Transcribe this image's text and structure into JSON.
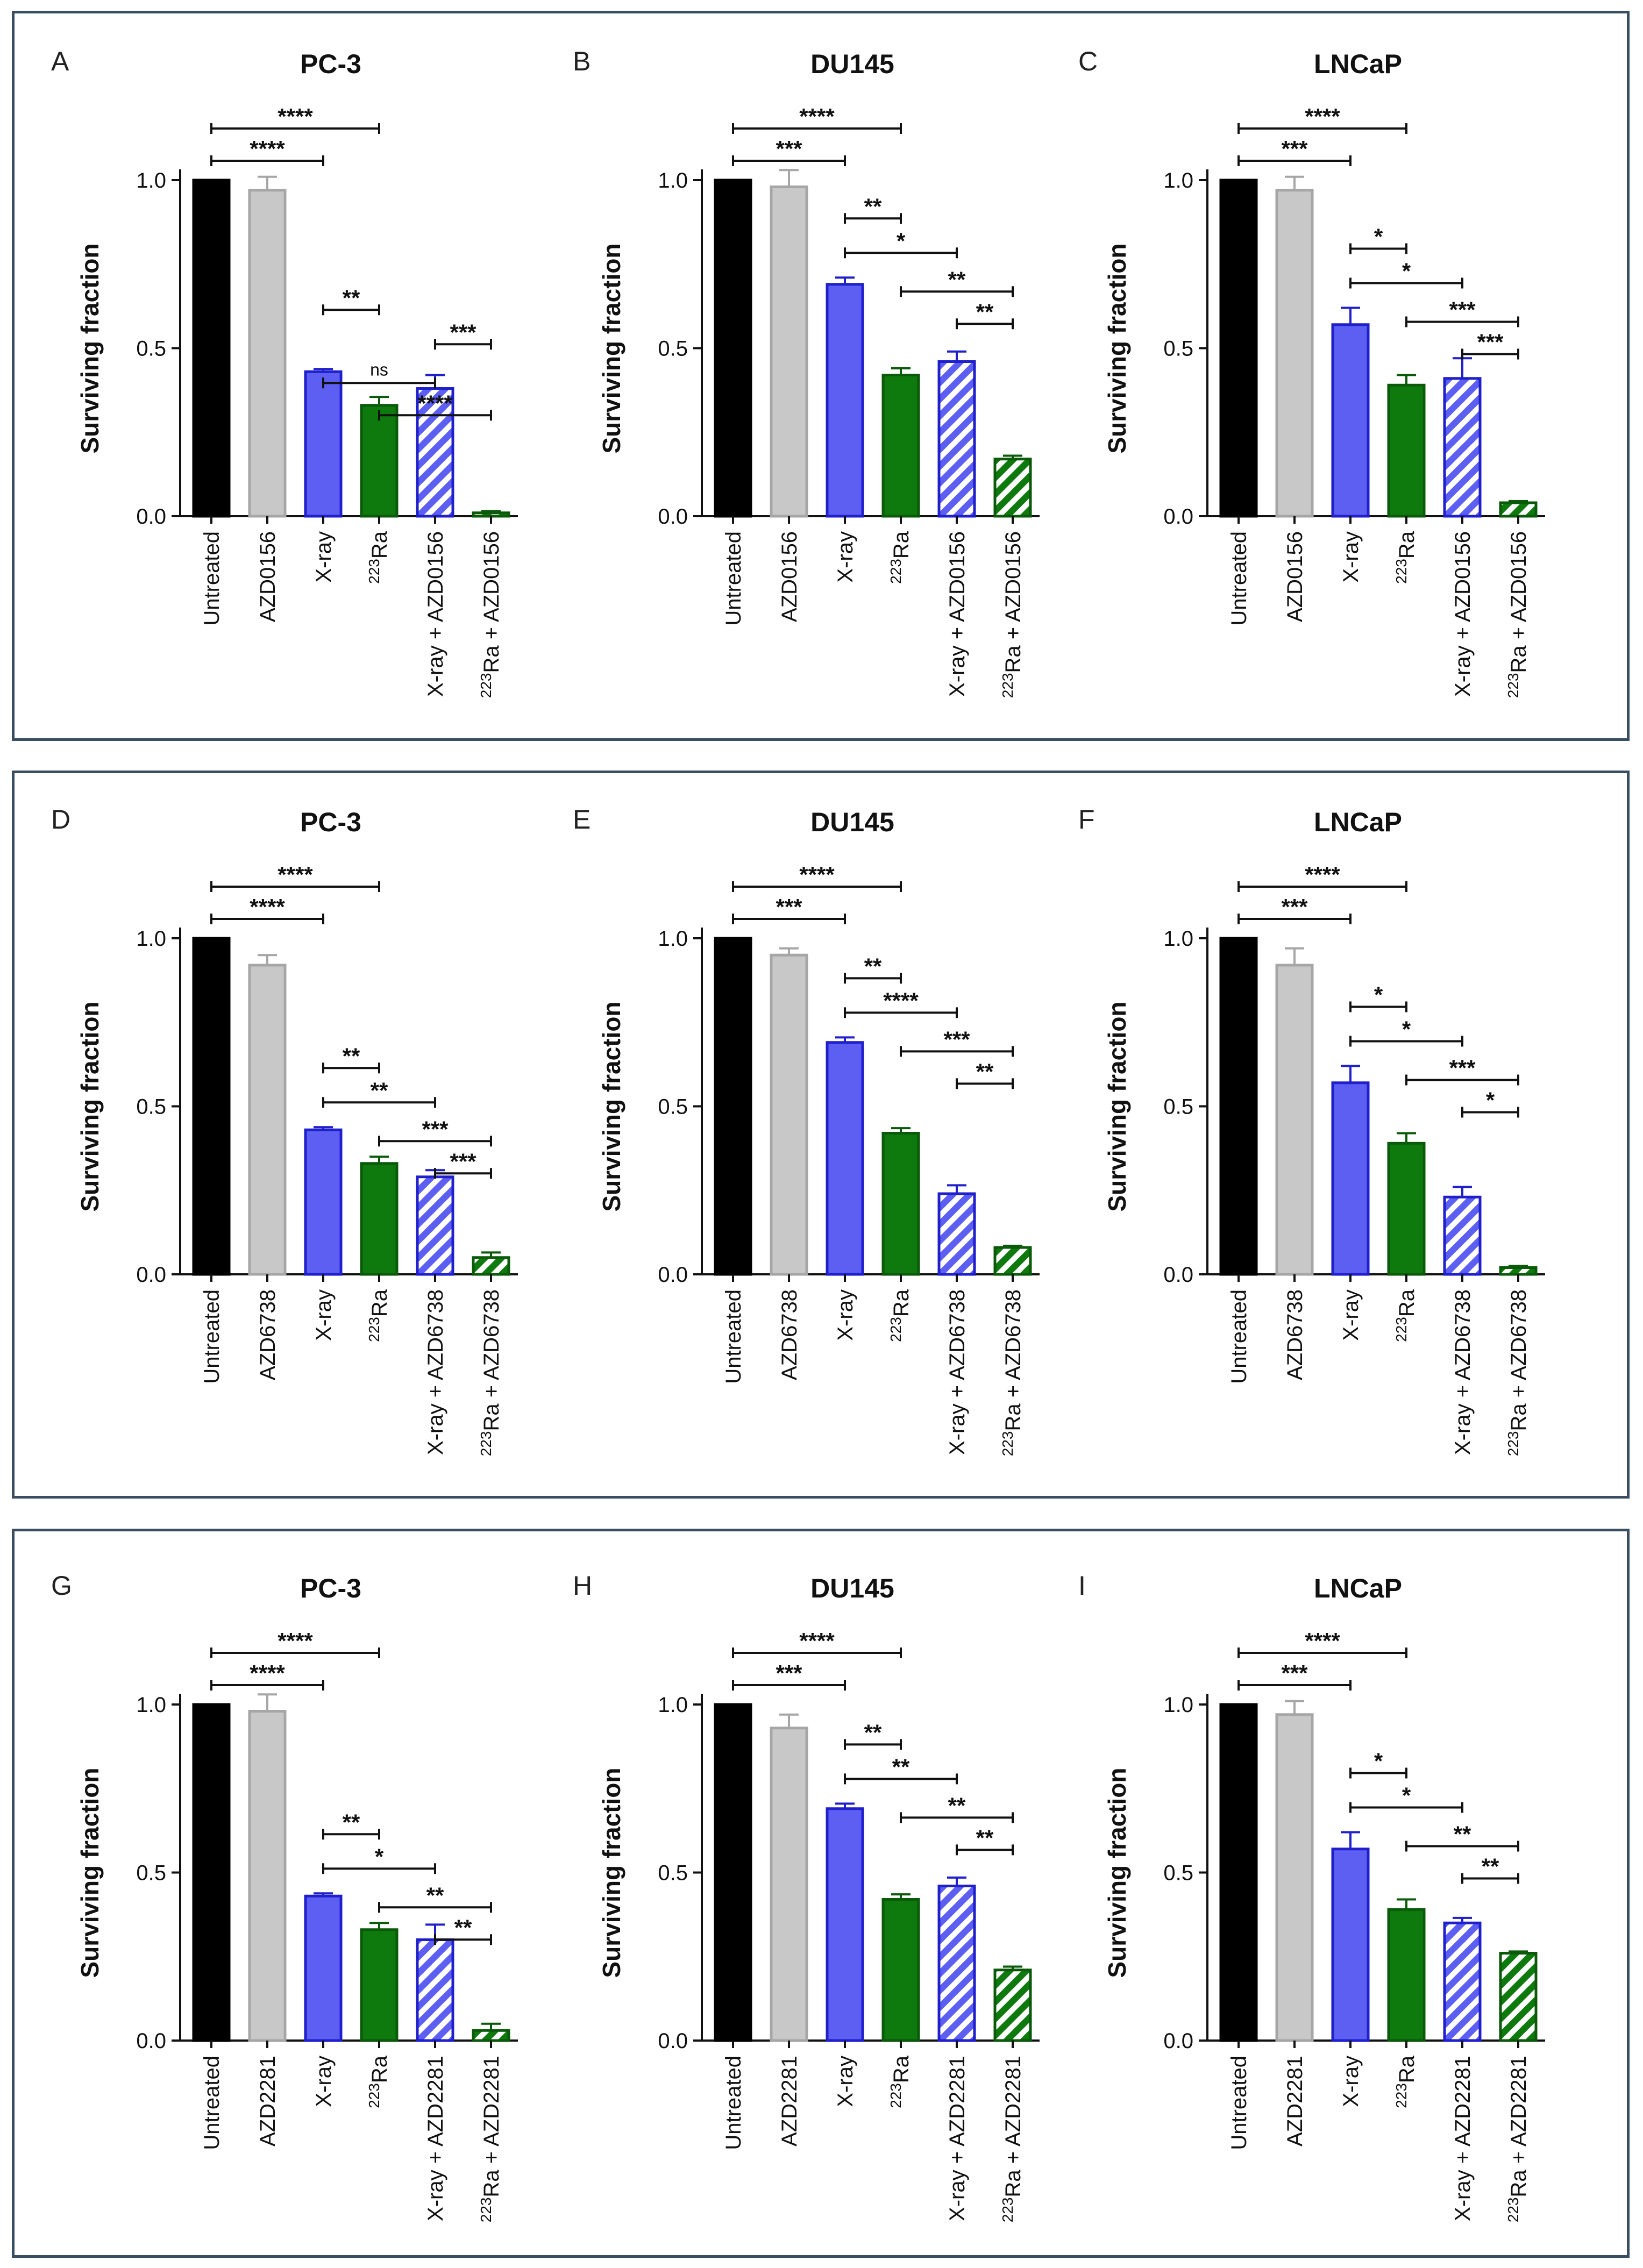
{
  "figure": {
    "rows": [
      {
        "id": "row-1",
        "panels": [
          "A",
          "B",
          "C"
        ]
      },
      {
        "id": "row-2",
        "panels": [
          "D",
          "E",
          "F"
        ]
      },
      {
        "id": "row-3",
        "panels": [
          "G",
          "H",
          "I"
        ]
      }
    ]
  },
  "colors": {
    "untreated": "#000000",
    "drug": "#c8c8c8",
    "drug_outline": "#a6a6a6",
    "xray": "#5c5ff2",
    "xray_outline": "#1f1fcc",
    "ra": "#0e7a0e",
    "ra_outline": "#0a5a0a",
    "frame": "#3a4e62"
  },
  "chart_data": [
    {
      "panel": "A",
      "title": "PC-3",
      "type": "bar",
      "ylabel": "Surviving fraction",
      "ylim": [
        0,
        1.0
      ],
      "yticks": [
        "0.0",
        "0.5",
        "1.0"
      ],
      "categories": [
        "Untreated",
        "AZD0156",
        "X-ray",
        "Ra",
        "X-ray + AZD0156",
        "Ra + AZD0156"
      ],
      "superscripts": [
        "",
        "",
        "",
        "223",
        "",
        "223"
      ],
      "values": [
        1.0,
        0.97,
        0.43,
        0.33,
        0.38,
        0.01
      ],
      "errors": [
        0,
        0.04,
        0.008,
        0.025,
        0.04,
        0.005
      ],
      "comparisons": [
        {
          "from": 0,
          "to": 3,
          "label": "****"
        },
        {
          "from": 0,
          "to": 2,
          "label": "****"
        },
        {
          "from": 2,
          "to": 3,
          "label": "**"
        },
        {
          "from": 4,
          "to": 5,
          "label": "***"
        },
        {
          "from": 2,
          "to": 4,
          "label": "ns"
        },
        {
          "from": 3,
          "to": 5,
          "label": "****"
        }
      ]
    },
    {
      "panel": "B",
      "title": "DU145",
      "type": "bar",
      "ylabel": "Surviving fraction",
      "ylim": [
        0,
        1.0
      ],
      "yticks": [
        "0.0",
        "0.5",
        "1.0"
      ],
      "categories": [
        "Untreated",
        "AZD0156",
        "X-ray",
        "Ra",
        "X-ray + AZD0156",
        "Ra + AZD0156"
      ],
      "superscripts": [
        "",
        "",
        "",
        "223",
        "",
        "223"
      ],
      "values": [
        1.0,
        0.98,
        0.69,
        0.42,
        0.46,
        0.17
      ],
      "errors": [
        0,
        0.05,
        0.02,
        0.02,
        0.03,
        0.01
      ],
      "comparisons": [
        {
          "from": 0,
          "to": 3,
          "label": "****"
        },
        {
          "from": 0,
          "to": 2,
          "label": "***"
        },
        {
          "from": 2,
          "to": 3,
          "label": "**"
        },
        {
          "from": 2,
          "to": 4,
          "label": "*"
        },
        {
          "from": 3,
          "to": 5,
          "label": "**"
        },
        {
          "from": 4,
          "to": 5,
          "label": "**"
        }
      ]
    },
    {
      "panel": "C",
      "title": "LNCaP",
      "type": "bar",
      "ylabel": "Surviving fraction",
      "ylim": [
        0,
        1.0
      ],
      "yticks": [
        "0.0",
        "0.5",
        "1.0"
      ],
      "categories": [
        "Untreated",
        "AZD0156",
        "X-ray",
        "Ra",
        "X-ray + AZD0156",
        "Ra + AZD0156"
      ],
      "superscripts": [
        "",
        "",
        "",
        "223",
        "",
        "223"
      ],
      "values": [
        1.0,
        0.97,
        0.57,
        0.39,
        0.41,
        0.04
      ],
      "errors": [
        0,
        0.04,
        0.05,
        0.03,
        0.06,
        0.005
      ],
      "comparisons": [
        {
          "from": 0,
          "to": 3,
          "label": "****"
        },
        {
          "from": 0,
          "to": 2,
          "label": "***"
        },
        {
          "from": 2,
          "to": 3,
          "label": "*"
        },
        {
          "from": 2,
          "to": 4,
          "label": "*"
        },
        {
          "from": 3,
          "to": 5,
          "label": "***"
        },
        {
          "from": 4,
          "to": 5,
          "label": "***"
        }
      ]
    },
    {
      "panel": "D",
      "title": "PC-3",
      "type": "bar",
      "ylabel": "Surviving fraction",
      "ylim": [
        0,
        1.0
      ],
      "yticks": [
        "0.0",
        "0.5",
        "1.0"
      ],
      "categories": [
        "Untreated",
        "AZD6738",
        "X-ray",
        "Ra",
        "X-ray + AZD6738",
        "Ra + AZD6738"
      ],
      "superscripts": [
        "",
        "",
        "",
        "223",
        "",
        "223"
      ],
      "values": [
        1.0,
        0.92,
        0.43,
        0.33,
        0.29,
        0.05
      ],
      "errors": [
        0,
        0.03,
        0.008,
        0.02,
        0.02,
        0.015
      ],
      "comparisons": [
        {
          "from": 0,
          "to": 3,
          "label": "****"
        },
        {
          "from": 0,
          "to": 2,
          "label": "****"
        },
        {
          "from": 2,
          "to": 3,
          "label": "**"
        },
        {
          "from": 2,
          "to": 4,
          "label": "**"
        },
        {
          "from": 3,
          "to": 5,
          "label": "***"
        },
        {
          "from": 4,
          "to": 5,
          "label": "***"
        }
      ]
    },
    {
      "panel": "E",
      "title": "DU145",
      "type": "bar",
      "ylabel": "Surviving fraction",
      "ylim": [
        0,
        1.0
      ],
      "yticks": [
        "0.0",
        "0.5",
        "1.0"
      ],
      "categories": [
        "Untreated",
        "AZD6738",
        "X-ray",
        "Ra",
        "X-ray + AZD6738",
        "Ra + AZD6738"
      ],
      "superscripts": [
        "",
        "",
        "",
        "223",
        "",
        "223"
      ],
      "values": [
        1.0,
        0.95,
        0.69,
        0.42,
        0.24,
        0.08
      ],
      "errors": [
        0,
        0.02,
        0.015,
        0.015,
        0.025,
        0.005
      ],
      "comparisons": [
        {
          "from": 0,
          "to": 3,
          "label": "****"
        },
        {
          "from": 0,
          "to": 2,
          "label": "***"
        },
        {
          "from": 2,
          "to": 3,
          "label": "**"
        },
        {
          "from": 2,
          "to": 4,
          "label": "****"
        },
        {
          "from": 3,
          "to": 5,
          "label": "***"
        },
        {
          "from": 4,
          "to": 5,
          "label": "**"
        }
      ]
    },
    {
      "panel": "F",
      "title": "LNCaP",
      "type": "bar",
      "ylabel": "Surviving fraction",
      "ylim": [
        0,
        1.0
      ],
      "yticks": [
        "0.0",
        "0.5",
        "1.0"
      ],
      "categories": [
        "Untreated",
        "AZD6738",
        "X-ray",
        "Ra",
        "X-ray + AZD6738",
        "Ra + AZD6738"
      ],
      "superscripts": [
        "",
        "",
        "",
        "223",
        "",
        "223"
      ],
      "values": [
        1.0,
        0.92,
        0.57,
        0.39,
        0.23,
        0.02
      ],
      "errors": [
        0,
        0.05,
        0.05,
        0.03,
        0.03,
        0.005
      ],
      "comparisons": [
        {
          "from": 0,
          "to": 3,
          "label": "****"
        },
        {
          "from": 0,
          "to": 2,
          "label": "***"
        },
        {
          "from": 2,
          "to": 3,
          "label": "*"
        },
        {
          "from": 2,
          "to": 4,
          "label": "*"
        },
        {
          "from": 3,
          "to": 5,
          "label": "***"
        },
        {
          "from": 4,
          "to": 5,
          "label": "*"
        }
      ]
    },
    {
      "panel": "G",
      "title": "PC-3",
      "type": "bar",
      "ylabel": "Surviving fraction",
      "ylim": [
        0,
        1.0
      ],
      "yticks": [
        "0.0",
        "0.5",
        "1.0"
      ],
      "categories": [
        "Untreated",
        "AZD2281",
        "X-ray",
        "Ra",
        "X-ray + AZD2281",
        "Ra + AZD2281"
      ],
      "superscripts": [
        "",
        "",
        "",
        "223",
        "",
        "223"
      ],
      "values": [
        1.0,
        0.98,
        0.43,
        0.33,
        0.3,
        0.03
      ],
      "errors": [
        0,
        0.05,
        0.008,
        0.02,
        0.045,
        0.02
      ],
      "comparisons": [
        {
          "from": 0,
          "to": 3,
          "label": "****"
        },
        {
          "from": 0,
          "to": 2,
          "label": "****"
        },
        {
          "from": 2,
          "to": 3,
          "label": "**"
        },
        {
          "from": 2,
          "to": 4,
          "label": "*"
        },
        {
          "from": 3,
          "to": 5,
          "label": "**"
        },
        {
          "from": 4,
          "to": 5,
          "label": "**"
        }
      ]
    },
    {
      "panel": "H",
      "title": "DU145",
      "type": "bar",
      "ylabel": "Surviving fraction",
      "ylim": [
        0,
        1.0
      ],
      "yticks": [
        "0.0",
        "0.5",
        "1.0"
      ],
      "categories": [
        "Untreated",
        "AZD2281",
        "X-ray",
        "Ra",
        "X-ray + AZD2281",
        "Ra + AZD2281"
      ],
      "superscripts": [
        "",
        "",
        "",
        "223",
        "",
        "223"
      ],
      "values": [
        1.0,
        0.93,
        0.69,
        0.42,
        0.46,
        0.21
      ],
      "errors": [
        0,
        0.04,
        0.015,
        0.015,
        0.025,
        0.01
      ],
      "comparisons": [
        {
          "from": 0,
          "to": 3,
          "label": "****"
        },
        {
          "from": 0,
          "to": 2,
          "label": "***"
        },
        {
          "from": 2,
          "to": 3,
          "label": "**"
        },
        {
          "from": 2,
          "to": 4,
          "label": "**"
        },
        {
          "from": 3,
          "to": 5,
          "label": "**"
        },
        {
          "from": 4,
          "to": 5,
          "label": "**"
        }
      ]
    },
    {
      "panel": "I",
      "title": "LNCaP",
      "type": "bar",
      "ylabel": "Surviving fraction",
      "ylim": [
        0,
        1.0
      ],
      "yticks": [
        "0.0",
        "0.5",
        "1.0"
      ],
      "categories": [
        "Untreated",
        "AZD2281",
        "X-ray",
        "Ra",
        "X-ray + AZD2281",
        "Ra + AZD2281"
      ],
      "superscripts": [
        "",
        "",
        "",
        "223",
        "",
        "223"
      ],
      "values": [
        1.0,
        0.97,
        0.57,
        0.39,
        0.35,
        0.26
      ],
      "errors": [
        0,
        0.04,
        0.05,
        0.03,
        0.015,
        0.005
      ],
      "comparisons": [
        {
          "from": 0,
          "to": 3,
          "label": "****"
        },
        {
          "from": 0,
          "to": 2,
          "label": "***"
        },
        {
          "from": 2,
          "to": 3,
          "label": "*"
        },
        {
          "from": 2,
          "to": 4,
          "label": "*"
        },
        {
          "from": 3,
          "to": 5,
          "label": "**"
        },
        {
          "from": 4,
          "to": 5,
          "label": "**"
        }
      ]
    }
  ]
}
